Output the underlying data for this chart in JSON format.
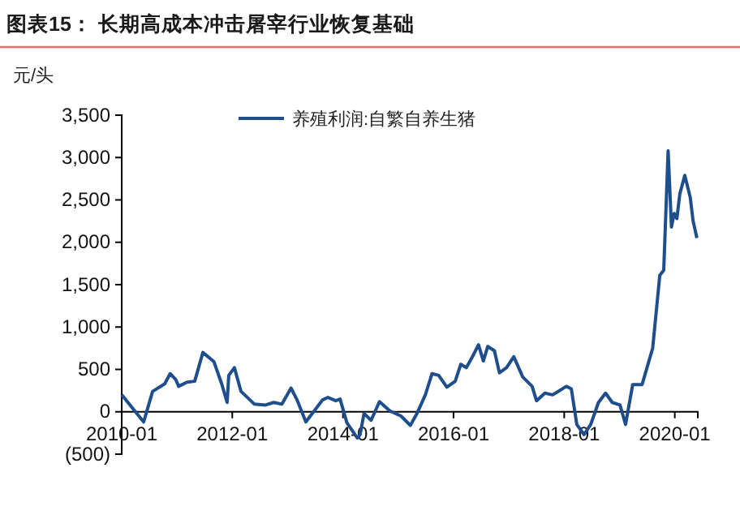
{
  "chart_data": {
    "type": "line",
    "title": "图表15：  长期高成本冲击屠宰行业恢复基础",
    "ylabel": "元/头",
    "xlim": [
      "2010-01-01",
      "2020-06-01"
    ],
    "xticks": [
      {
        "value": "2010-01-01",
        "label": "2010-01"
      },
      {
        "value": "2012-01-01",
        "label": "2012-01"
      },
      {
        "value": "2014-01-01",
        "label": "2014-01"
      },
      {
        "value": "2016-01-01",
        "label": "2016-01"
      },
      {
        "value": "2018-01-01",
        "label": "2018-01"
      },
      {
        "value": "2020-01-01",
        "label": "2020-01"
      }
    ],
    "ylim": [
      -500,
      3500
    ],
    "yticks": [
      {
        "value": -500,
        "label": "(500)"
      },
      0,
      500,
      {
        "value": 1000,
        "label": "1,000"
      },
      {
        "value": 1500,
        "label": "1,500"
      },
      {
        "value": 2000,
        "label": "2,000"
      },
      {
        "value": 2500,
        "label": "2,500"
      },
      {
        "value": 3000,
        "label": "3,000"
      },
      {
        "value": 3500,
        "label": "3,500"
      }
    ],
    "legend": "top",
    "grid": false,
    "marker": "none",
    "line_style": "solid",
    "x": [
      "2010-01-01",
      "2010-05-26",
      "2010-07-24",
      "2010-10-12",
      "2010-11-17",
      "2010-12-24",
      "2011-01-12",
      "2011-03-08",
      "2011-04-28",
      "2011-06-21",
      "2011-09-02",
      "2011-10-23",
      "2011-11-28",
      "2011-12-09",
      "2012-01-15",
      "2012-02-28",
      "2012-05-26",
      "2012-08-07",
      "2012-10-01",
      "2012-11-24",
      "2013-01-23",
      "2013-03-04",
      "2013-05-01",
      "2013-06-25",
      "2013-08-19",
      "2013-09-24",
      "2013-11-14",
      "2013-12-13",
      "2014-01-27",
      "2014-04-06",
      "2014-04-24",
      "2014-05-20",
      "2014-07-06",
      "2014-08-30",
      "2014-11-07",
      "2015-01-19",
      "2015-03-22",
      "2015-05-05",
      "2015-06-29",
      "2015-08-12",
      "2015-09-25",
      "2015-11-18",
      "2016-01-12",
      "2016-02-18",
      "2016-03-25",
      "2016-05-08",
      "2016-06-14",
      "2016-07-16",
      "2016-08-14",
      "2016-09-27",
      "2016-10-30",
      "2016-12-16",
      "2017-02-02",
      "2017-04-02",
      "2017-06-03",
      "2017-07-02",
      "2017-08-26",
      "2017-10-16",
      "2017-11-22",
      "2018-01-15",
      "2018-02-17",
      "2018-03-25",
      "2018-05-12",
      "2018-06-25",
      "2018-08-15",
      "2018-10-01",
      "2018-11-14",
      "2019-01-04",
      "2019-02-10",
      "2019-03-29",
      "2019-05-30",
      "2019-08-08",
      "2019-09-24",
      "2019-10-20",
      "2019-11-18",
      "2019-12-10",
      "2019-12-28",
      "2020-01-15",
      "2020-02-03",
      "2020-03-07",
      "2020-04-12",
      "2020-05-01",
      "2020-05-26"
    ],
    "series": [
      {
        "name": "养殖利润:自繁自养生猪",
        "color": "#1f4e8c",
        "values": [
          200,
          -120,
          240,
          330,
          450,
          380,
          300,
          350,
          360,
          700,
          590,
          330,
          110,
          430,
          520,
          240,
          90,
          80,
          110,
          90,
          280,
          140,
          -120,
          10,
          140,
          170,
          130,
          150,
          -130,
          -310,
          -270,
          -20,
          -100,
          120,
          10,
          -50,
          -160,
          -20,
          200,
          450,
          430,
          290,
          360,
          560,
          520,
          660,
          790,
          600,
          770,
          720,
          460,
          520,
          650,
          410,
          300,
          130,
          220,
          200,
          240,
          300,
          270,
          -150,
          -270,
          -150,
          110,
          220,
          110,
          80,
          -150,
          320,
          320,
          750,
          1610,
          1670,
          3080,
          2180,
          2340,
          2280,
          2570,
          2790,
          2530,
          2250,
          2050
        ]
      }
    ]
  }
}
